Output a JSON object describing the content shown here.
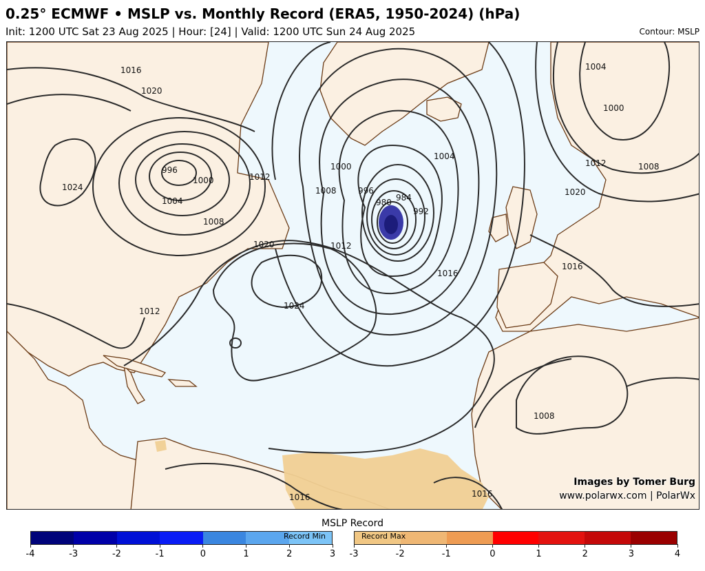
{
  "header": {
    "title": "0.25° ECMWF • MSLP vs. Monthly Record (ERA5, 1950-2024) (hPa)",
    "subtitle": "Init: 1200 UTC Sat 23 Aug 2025 | Hour: [24] | Valid: 1200 UTC Sun 24 Aug 2025",
    "contour_label": "Contour: MSLP"
  },
  "map": {
    "contour_labels": [
      "1016",
      "1020",
      "1024",
      "996",
      "1000",
      "1004",
      "1008",
      "1012",
      "1020",
      "1000",
      "1008",
      "996",
      "980",
      "984",
      "992",
      "1004",
      "1012",
      "1016",
      "1024",
      "1012",
      "1000",
      "1004",
      "1012",
      "1008",
      "1020",
      "1016",
      "1008",
      "1016",
      "1016"
    ]
  },
  "credits": {
    "line1": "Images by Tomer Burg",
    "line2": "www.polarwx.com | PolarWx"
  },
  "legend": {
    "title": "MSLP Record",
    "record_min_label": "Record Min",
    "record_max_label": "Record Max",
    "min_ticks": [
      "-4",
      "-3",
      "-2",
      "-1",
      "0",
      "1",
      "2",
      "3"
    ],
    "max_ticks": [
      "-3",
      "-2",
      "-1",
      "0",
      "1",
      "2",
      "3",
      "4"
    ],
    "min_colors": [
      "#00037a",
      "#0000a8",
      "#0010d6",
      "#0a1cf5",
      "#3a86e0",
      "#5ba6ee",
      "#7cc4f7"
    ],
    "max_colors": [
      "#f1c784",
      "#efb774",
      "#ee9c53",
      "#ff0000",
      "#e3120f",
      "#c40909",
      "#9a0000"
    ]
  }
}
